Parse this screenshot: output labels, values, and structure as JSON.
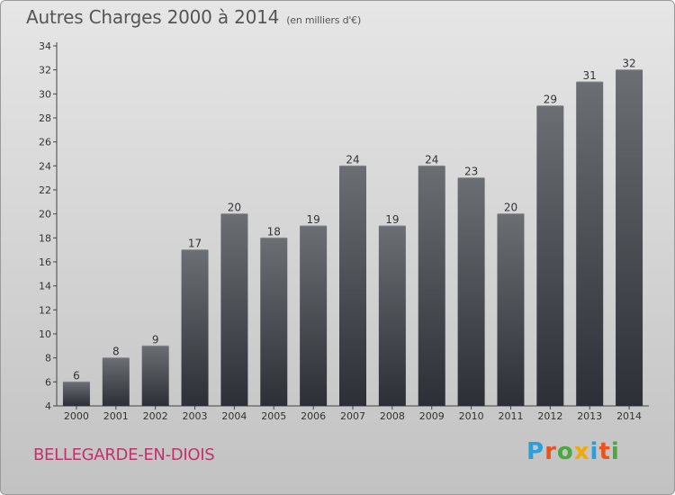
{
  "header": {
    "title": "Autres Charges 2000 à 2014",
    "subtitle": "(en milliers d'€)"
  },
  "commune": "BELLEGARDE-EN-DIOIS",
  "logo": {
    "letters": [
      "P",
      "r",
      "o",
      "x",
      "i",
      "t",
      "i"
    ],
    "colors": [
      "#2b9fd9",
      "#e8531f",
      "#4aa83c",
      "#f2a900",
      "#2b9fd9",
      "#e8531f",
      "#4aa83c"
    ]
  },
  "colors": {
    "bar_top": "#6b6e73",
    "bar_bottom": "#2c3036",
    "axis": "#444444"
  },
  "chart_data": {
    "type": "bar",
    "categories": [
      "2000",
      "2001",
      "2002",
      "2003",
      "2004",
      "2005",
      "2006",
      "2007",
      "2008",
      "2009",
      "2010",
      "2011",
      "2012",
      "2013",
      "2014"
    ],
    "values": [
      6,
      8,
      9,
      17,
      20,
      18,
      19,
      24,
      19,
      24,
      23,
      20,
      29,
      31,
      32
    ],
    "ylim": [
      4,
      34
    ],
    "yticks": [
      4,
      6,
      8,
      10,
      12,
      14,
      16,
      18,
      20,
      22,
      24,
      26,
      28,
      30,
      32,
      34
    ],
    "grid": false,
    "data_labels": true
  }
}
